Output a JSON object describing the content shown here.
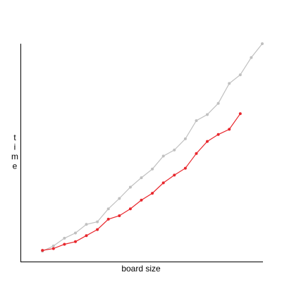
{
  "chart_data": {
    "type": "line",
    "xlabel": "board size",
    "ylabel": "time",
    "x": [
      2,
      3,
      4,
      5,
      6,
      7,
      8,
      9,
      10,
      11,
      12,
      13,
      14,
      15,
      16,
      17,
      18,
      19,
      20,
      21,
      22
    ],
    "series": [
      {
        "color": "#c0c0c0",
        "points": [
          [
            2,
            0.0
          ],
          [
            3,
            0.3
          ],
          [
            4,
            0.75
          ],
          [
            5,
            1.05
          ],
          [
            6,
            1.55
          ],
          [
            7,
            1.7
          ],
          [
            8,
            2.45
          ],
          [
            9,
            3.05
          ],
          [
            10,
            3.7
          ],
          [
            11,
            4.25
          ],
          [
            12,
            4.75
          ],
          [
            13,
            5.5
          ],
          [
            14,
            5.85
          ],
          [
            15,
            6.5
          ],
          [
            16,
            7.55
          ],
          [
            17,
            7.9
          ],
          [
            18,
            8.55
          ],
          [
            19,
            9.7
          ],
          [
            20,
            10.2
          ],
          [
            21,
            11.2
          ],
          [
            22,
            12.0
          ]
        ]
      },
      {
        "color": "#e8262c",
        "points": [
          [
            2,
            0.05
          ],
          [
            3,
            0.15
          ],
          [
            4,
            0.4
          ],
          [
            5,
            0.55
          ],
          [
            6,
            0.9
          ],
          [
            7,
            1.25
          ],
          [
            8,
            1.85
          ],
          [
            9,
            2.05
          ],
          [
            10,
            2.45
          ],
          [
            11,
            2.95
          ],
          [
            12,
            3.35
          ],
          [
            13,
            3.95
          ],
          [
            14,
            4.4
          ],
          [
            15,
            4.8
          ],
          [
            16,
            5.65
          ],
          [
            17,
            6.35
          ],
          [
            18,
            6.75
          ],
          [
            19,
            7.05
          ],
          [
            20,
            7.95
          ]
        ]
      }
    ],
    "xlim": [
      0,
      22
    ],
    "ylim": [
      -0.6,
      12.0
    ],
    "grid": false,
    "legend": "none"
  }
}
